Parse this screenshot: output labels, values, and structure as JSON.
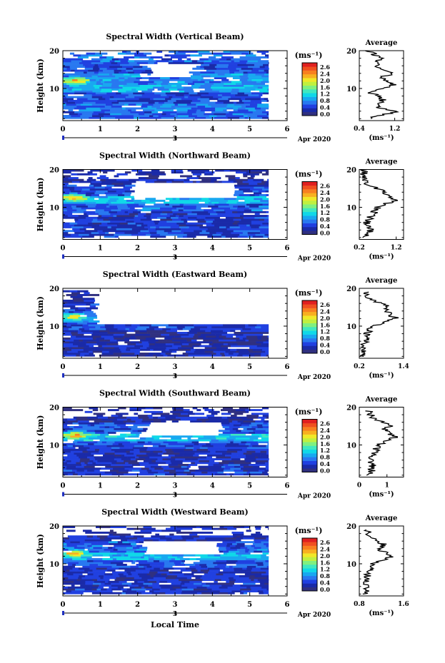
{
  "colorbar": {
    "unit_label": "(ms⁻¹)",
    "ticks": [
      "2.6",
      "2.4",
      "2.0",
      "1.6",
      "1.2",
      "0.8",
      "0.4",
      "0.0"
    ],
    "colors": [
      "#303080",
      "#1a2aa8",
      "#2040e0",
      "#2878f0",
      "#18a8f0",
      "#10d8e8",
      "#40e8c0",
      "#80f080",
      "#c0f040",
      "#f0e828",
      "#f8b020",
      "#f88020",
      "#f05020",
      "#e02020"
    ]
  },
  "xaxis": {
    "ticks": [
      "0",
      "1",
      "2",
      "3",
      "4",
      "5",
      "6"
    ],
    "date_day": "3",
    "month_year": "Apr 2020",
    "label": "Local Time"
  },
  "yaxis": {
    "label": "Height (km)",
    "ticks": [
      "20",
      "10"
    ]
  },
  "average": {
    "title": "Average",
    "xunit": "(ms⁻¹)"
  },
  "chart_data": [
    {
      "type": "heatmap",
      "title": "Spectral Width (Vertical Beam)",
      "x_range": [
        0,
        6
      ],
      "y_range": [
        1.5,
        20
      ],
      "value_range": [
        0.0,
        2.8
      ],
      "data_time_range": [
        0,
        5.5
      ],
      "layers": [
        {
          "y": [
            2,
            4
          ],
          "value": 0.6
        },
        {
          "y": [
            4,
            6
          ],
          "value": 0.7
        },
        {
          "y": [
            6,
            9
          ],
          "value": 0.5
        },
        {
          "y": [
            9,
            11
          ],
          "value": 0.9
        },
        {
          "y": [
            11,
            14
          ],
          "value": 0.8
        },
        {
          "y": [
            14,
            17
          ],
          "value": 0.55
        },
        {
          "y": [
            17,
            20
          ],
          "value": 0.6
        }
      ],
      "hotspots": [
        {
          "t": 0.35,
          "y": 11.8,
          "value": 2.5
        }
      ],
      "gap": {
        "t": [
          2.4,
          3.5
        ],
        "y": [
          13,
          16
        ]
      },
      "average_profile": {
        "xlim": [
          0.4,
          1.4
        ],
        "xticks": [
          "0.4",
          "1.2"
        ],
        "points": [
          [
            0.62,
            2
          ],
          [
            1.25,
            4
          ],
          [
            0.8,
            5
          ],
          [
            0.95,
            7
          ],
          [
            0.65,
            9
          ],
          [
            1.15,
            11
          ],
          [
            0.85,
            13
          ],
          [
            1.2,
            14
          ],
          [
            0.75,
            16
          ],
          [
            0.9,
            18
          ],
          [
            0.6,
            20
          ]
        ]
      }
    },
    {
      "type": "heatmap",
      "title": "Spectral Width (Northward Beam)",
      "x_range": [
        0,
        6
      ],
      "y_range": [
        1.5,
        20
      ],
      "value_range": [
        0.0,
        2.8
      ],
      "data_time_range": [
        0,
        5.5
      ],
      "layers": [
        {
          "y": [
            2,
            5
          ],
          "value": 0.45
        },
        {
          "y": [
            5,
            9
          ],
          "value": 0.4
        },
        {
          "y": [
            9,
            11
          ],
          "value": 0.6
        },
        {
          "y": [
            11,
            13
          ],
          "value": 0.95
        },
        {
          "y": [
            13,
            16
          ],
          "value": 0.5
        },
        {
          "y": [
            16,
            20
          ],
          "value": 0.3
        }
      ],
      "hotspots": [
        {
          "t": 0.3,
          "y": 12.3,
          "value": 2.5
        }
      ],
      "gap": {
        "t": [
          1.8,
          4.6
        ],
        "y": [
          12.5,
          16
        ]
      },
      "average_profile": {
        "xlim": [
          0.2,
          1.4
        ],
        "xticks": [
          "0.2",
          "1.2"
        ],
        "points": [
          [
            0.35,
            2
          ],
          [
            0.5,
            4
          ],
          [
            0.4,
            6
          ],
          [
            0.55,
            8
          ],
          [
            0.7,
            10
          ],
          [
            1.2,
            12
          ],
          [
            0.9,
            14
          ],
          [
            0.45,
            16
          ],
          [
            0.3,
            18
          ],
          [
            0.35,
            20
          ]
        ]
      }
    },
    {
      "type": "heatmap",
      "title": "Spectral Width (Eastward Beam)",
      "x_range": [
        0,
        6
      ],
      "y_range": [
        1.5,
        20
      ],
      "value_range": [
        0.0,
        2.8
      ],
      "data_time_range": [
        0,
        5.5
      ],
      "layers": [
        {
          "y": [
            2,
            5
          ],
          "value": 0.35
        },
        {
          "y": [
            5,
            9
          ],
          "value": 0.3
        },
        {
          "y": [
            9,
            11
          ],
          "value": 0.45
        },
        {
          "y": [
            11,
            13
          ],
          "value": 0.8
        },
        {
          "y": [
            13,
            16
          ],
          "value": 0.5
        },
        {
          "y": [
            16,
            20
          ],
          "value": 0.3
        }
      ],
      "hotspots": [
        {
          "t": 0.3,
          "y": 12.2,
          "value": 2.2
        }
      ],
      "gap": {
        "t": [
          0.9,
          5.6
        ],
        "y": [
          10.5,
          20
        ]
      },
      "average_profile": {
        "xlim": [
          0.2,
          1.4
        ],
        "xticks": [
          "0.2",
          "1.4"
        ],
        "points": [
          [
            0.3,
            2
          ],
          [
            0.35,
            4
          ],
          [
            0.35,
            6
          ],
          [
            0.4,
            8
          ],
          [
            0.55,
            10
          ],
          [
            1.2,
            12
          ],
          [
            0.9,
            14
          ],
          [
            1.0,
            15
          ],
          [
            0.5,
            17
          ],
          [
            0.35,
            19
          ]
        ]
      }
    },
    {
      "type": "heatmap",
      "title": "Spectral Width (Southward Beam)",
      "x_range": [
        0,
        6
      ],
      "y_range": [
        1.5,
        20
      ],
      "value_range": [
        0.0,
        2.8
      ],
      "data_time_range": [
        0,
        5.5
      ],
      "layers": [
        {
          "y": [
            2,
            5
          ],
          "value": 0.4
        },
        {
          "y": [
            5,
            9
          ],
          "value": 0.35
        },
        {
          "y": [
            9,
            11
          ],
          "value": 0.55
        },
        {
          "y": [
            11,
            13
          ],
          "value": 1.0
        },
        {
          "y": [
            13,
            16
          ],
          "value": 0.55
        },
        {
          "y": [
            16,
            20
          ],
          "value": 0.3
        }
      ],
      "hotspots": [
        {
          "t": 0.35,
          "y": 12.3,
          "value": 2.6
        }
      ],
      "gap": {
        "t": [
          2.3,
          4.3
        ],
        "y": [
          12.5,
          15.5
        ]
      },
      "average_profile": {
        "xlim": [
          0,
          1.6
        ],
        "xticks": [
          "0",
          "1"
        ],
        "points": [
          [
            0.35,
            2
          ],
          [
            0.5,
            4
          ],
          [
            0.4,
            6
          ],
          [
            0.55,
            8
          ],
          [
            0.7,
            10
          ],
          [
            1.3,
            12
          ],
          [
            0.9,
            14
          ],
          [
            1.1,
            15
          ],
          [
            0.5,
            17
          ],
          [
            0.35,
            19
          ]
        ]
      }
    },
    {
      "type": "heatmap",
      "title": "Spectral Width (Westward Beam)",
      "x_range": [
        0,
        6
      ],
      "y_range": [
        1.5,
        20
      ],
      "value_range": [
        0.0,
        2.8
      ],
      "data_time_range": [
        0,
        5.5
      ],
      "layers": [
        {
          "y": [
            2,
            5
          ],
          "value": 0.4
        },
        {
          "y": [
            5,
            9
          ],
          "value": 0.35
        },
        {
          "y": [
            9,
            11
          ],
          "value": 0.55
        },
        {
          "y": [
            11,
            13
          ],
          "value": 0.95
        },
        {
          "y": [
            13,
            16
          ],
          "value": 0.6
        },
        {
          "y": [
            16,
            20
          ],
          "value": 0.35
        }
      ],
      "hotspots": [
        {
          "t": 0.35,
          "y": 12.4,
          "value": 2.5
        }
      ],
      "gap": {
        "t": [
          2.2,
          4.2
        ],
        "y": [
          12.5,
          15.5
        ]
      },
      "average_profile": {
        "xlim": [
          0.8,
          1.6
        ],
        "xticks": [
          "0.8",
          "1.6"
        ],
        "points": [
          [
            0.9,
            2
          ],
          [
            0.95,
            4
          ],
          [
            0.92,
            6
          ],
          [
            0.98,
            8
          ],
          [
            1.05,
            10
          ],
          [
            1.4,
            12
          ],
          [
            1.15,
            14
          ],
          [
            1.25,
            15
          ],
          [
            1.0,
            17
          ],
          [
            0.95,
            19
          ]
        ]
      }
    }
  ]
}
